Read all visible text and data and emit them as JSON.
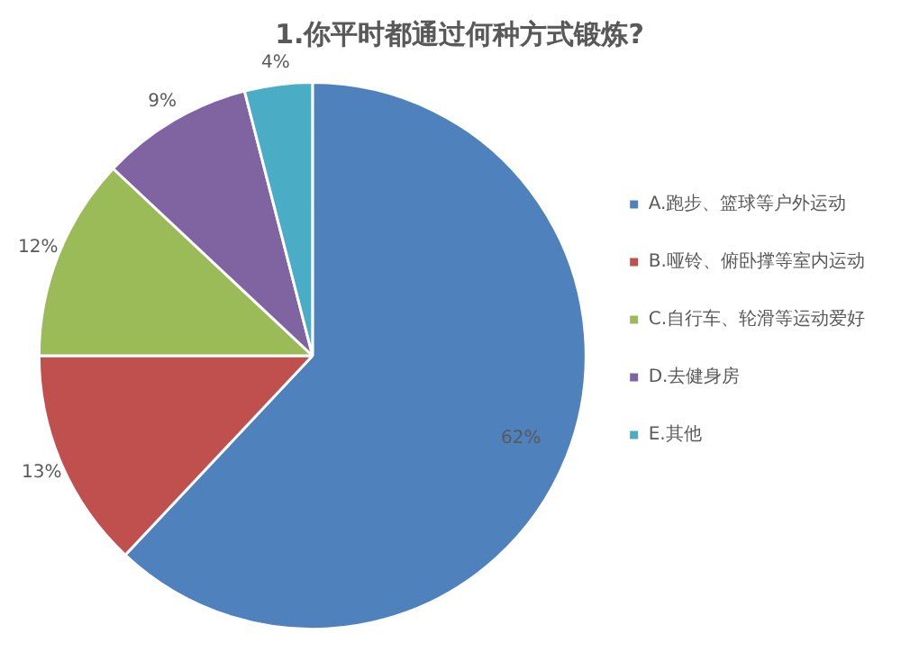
{
  "chart_data": {
    "type": "pie",
    "title": "1.你平时都通过何种方式锻炼?",
    "categories": [
      "A.跑步、篮球等户外运动",
      "B.哑铃、俯卧撑等室内运动",
      "C.自行车、轮滑等运动爱好",
      "D.去健身房",
      "E.其他"
    ],
    "values": [
      62,
      13,
      12,
      9,
      4
    ],
    "colors": [
      "#4f81bd",
      "#c0504d",
      "#9bbb59",
      "#8064a2",
      "#4bacc6"
    ],
    "value_labels": [
      "62%",
      "13%",
      "12%",
      "9%",
      "4%"
    ],
    "legend": "right"
  }
}
